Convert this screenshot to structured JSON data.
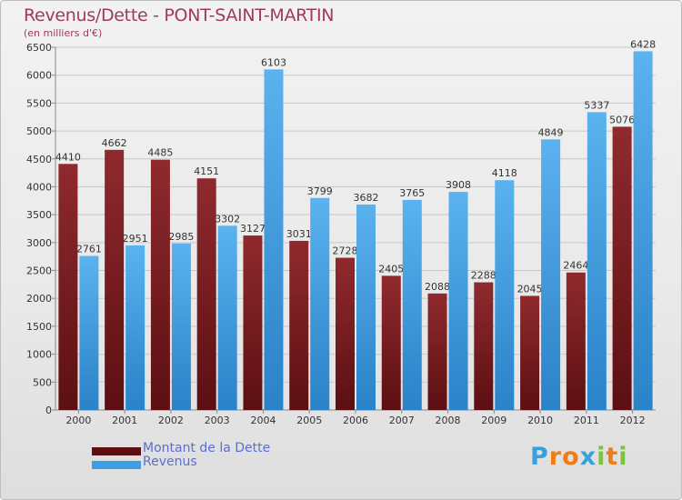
{
  "chart_data": {
    "type": "bar",
    "title": "Revenus/Dette - PONT-SAINT-MARTIN",
    "subtitle": "(en milliers d'€)",
    "categories": [
      "2000",
      "2001",
      "2002",
      "2003",
      "2004",
      "2005",
      "2006",
      "2007",
      "2008",
      "2009",
      "2010",
      "2011",
      "2012"
    ],
    "series": [
      {
        "name": "Montant de la Dette",
        "color": "#7a1e22",
        "values": [
          4410,
          4662,
          4485,
          4151,
          3127,
          3031,
          2728,
          2405,
          2088,
          2288,
          2045,
          2464,
          5076
        ],
        "labels": [
          "4410",
          "4662",
          "4485",
          "4151",
          "3127",
          "3031",
          "2728",
          "2405",
          "2088",
          "2288",
          "2045",
          "2464",
          "5076"
        ]
      },
      {
        "name": "Revenus",
        "color": "#3d9ee3",
        "values": [
          2761,
          2951,
          2985,
          3302,
          6103,
          3799,
          3682,
          3765,
          3908,
          4118,
          4849,
          5337,
          6428
        ],
        "labels": [
          "2761",
          "2951",
          "2985",
          "3302",
          "6103",
          "3799",
          "3682",
          "3765",
          "3908",
          "4118",
          "4849",
          "5337",
          "6428"
        ]
      }
    ],
    "yticks": [
      "0",
      "500",
      "1000",
      "1500",
      "2000",
      "2500",
      "3000",
      "3500",
      "4000",
      "4500",
      "5000",
      "5500",
      "6000",
      "6500"
    ],
    "ylim": [
      0,
      6500
    ],
    "grid": true,
    "legend": "bottom-left"
  },
  "legend": {
    "debt_label": "Montant de la Dette",
    "revenue_label": "Revenus"
  },
  "logo": {
    "text": "Proxiti",
    "letters": [
      "P",
      "r",
      "o",
      "x",
      "i",
      "t",
      "i"
    ],
    "colors": [
      "#3aa0dc",
      "#f07b17",
      "#f07b17",
      "#3aa0dc",
      "#7cc142",
      "#f07b17",
      "#7cc142"
    ]
  }
}
